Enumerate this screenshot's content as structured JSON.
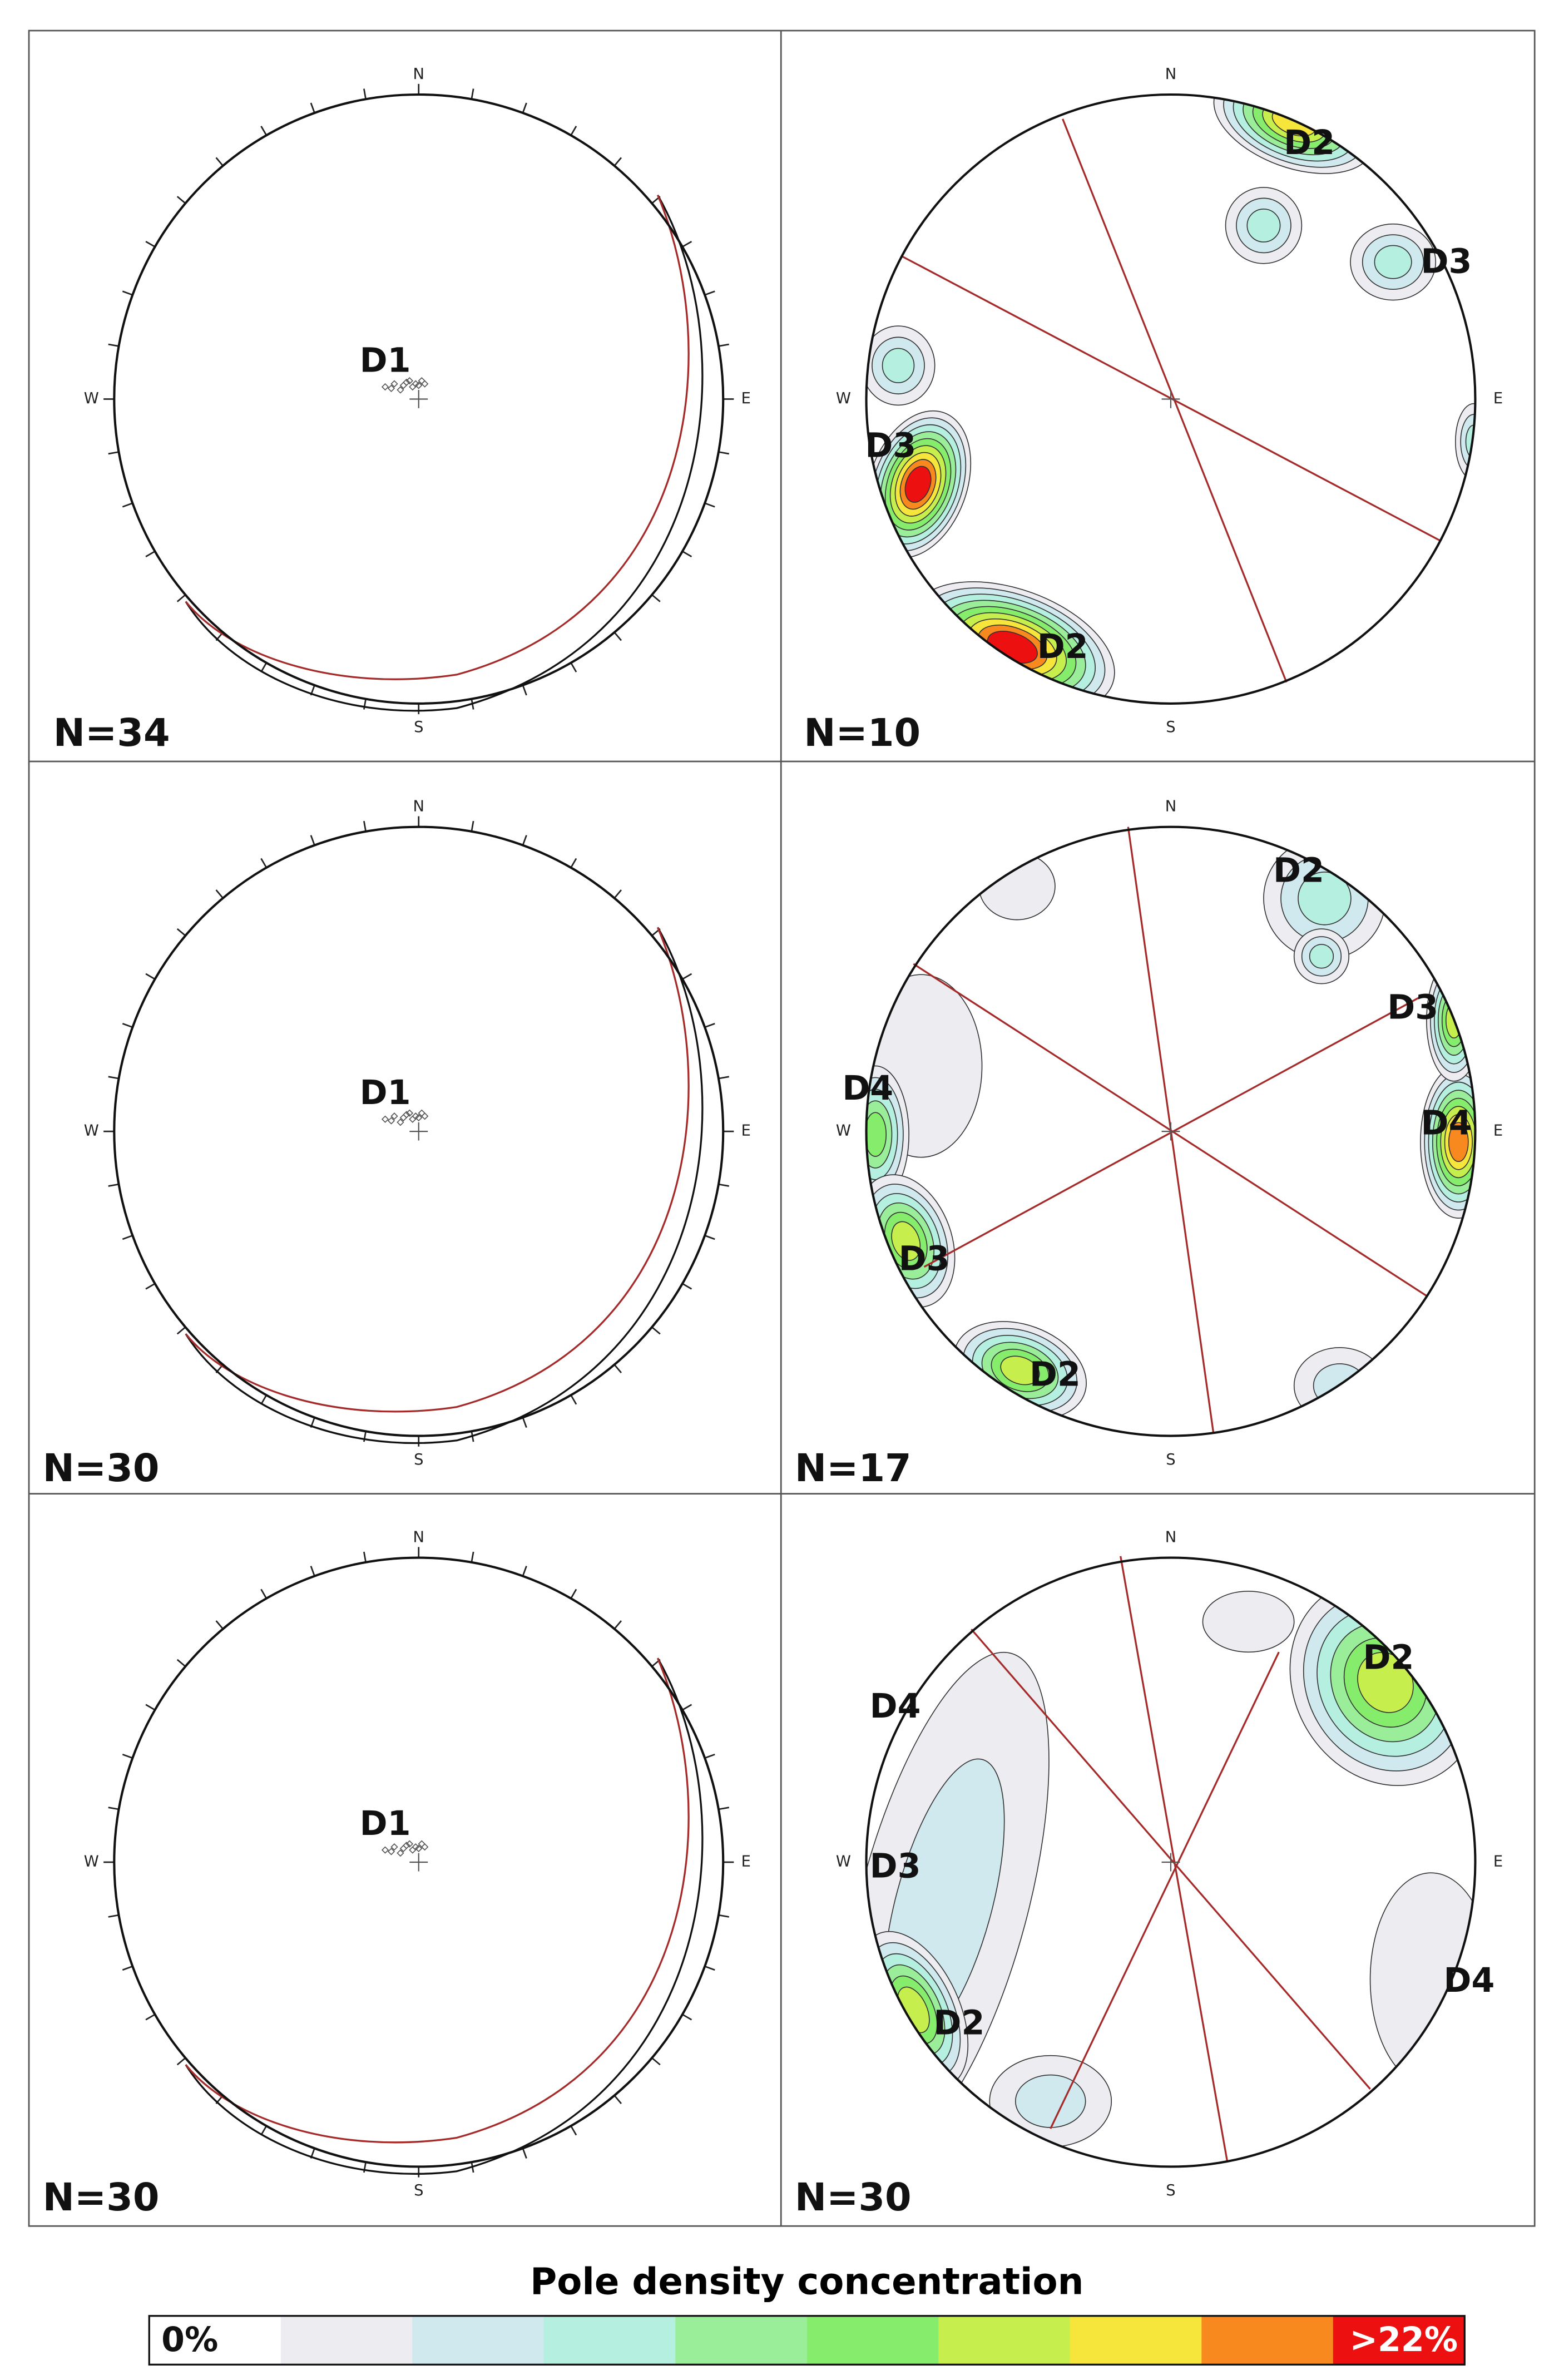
{
  "panels": [
    {
      "count": "N=34",
      "compass": [
        "N",
        "E",
        "S",
        "W"
      ],
      "labels": [
        "D1"
      ]
    },
    {
      "count": "N=10",
      "compass": [
        "N",
        "E",
        "S",
        "W"
      ],
      "labels": [
        "D2",
        "D3",
        "D3",
        "D2"
      ]
    },
    {
      "count": "N=30",
      "compass": [
        "N",
        "E",
        "S",
        "W"
      ],
      "labels": [
        "D1"
      ]
    },
    {
      "count": "N=17",
      "compass": [
        "N",
        "E",
        "S",
        "W"
      ],
      "labels": [
        "D2",
        "D3",
        "D4",
        "D4",
        "D3",
        "D2"
      ]
    },
    {
      "count": "N=30",
      "compass": [
        "N",
        "E",
        "S",
        "W"
      ],
      "labels": [
        "D1"
      ]
    },
    {
      "count": "N=30",
      "compass": [
        "N",
        "E",
        "S",
        "W"
      ],
      "labels": [
        "D2",
        "D4",
        "D3",
        "D2",
        "D4"
      ]
    }
  ],
  "legend": {
    "title": "Pole density concentration",
    "min": "0%",
    "max": ">22%"
  }
}
